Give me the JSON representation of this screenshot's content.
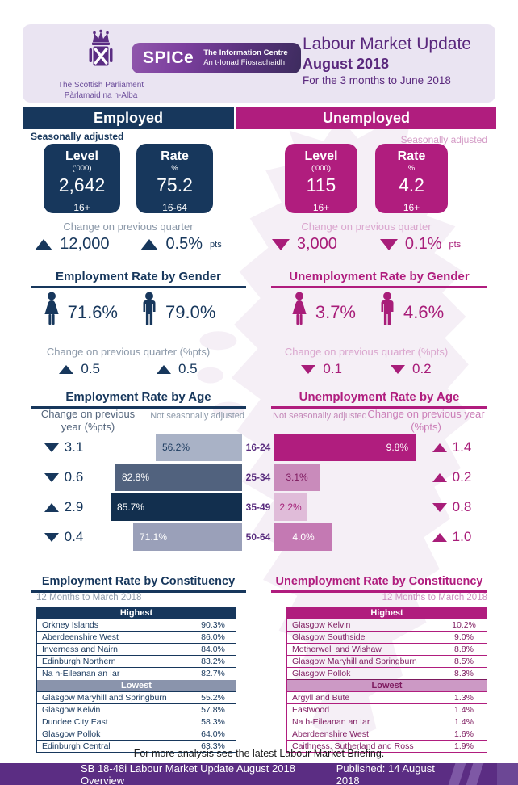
{
  "header": {
    "parliament_logo": {
      "line1": "The Scottish Parliament",
      "line2": "Pàrlamaid na h-Alba"
    },
    "spice_badge": {
      "name": "SPICe",
      "line1": "The Information Centre",
      "line2": "An t-Ionad Fiosrachaidh"
    },
    "title": "Labour Market Update",
    "month": "August 2018",
    "period": "For the 3 months to June 2018"
  },
  "summary": {
    "employed": {
      "header": "Employed",
      "note": "Seasonally adjusted",
      "level": {
        "label": "Level",
        "unit": "('000)",
        "value": "2,642",
        "age": "16+"
      },
      "rate": {
        "label": "Rate",
        "unit": "%",
        "value": "75.2",
        "age": "16-64"
      },
      "change_label": "Change on previous quarter",
      "changes": [
        {
          "direction": "up",
          "value": "12,000"
        },
        {
          "direction": "up",
          "value": "0.5%",
          "sub": "pts"
        }
      ]
    },
    "unemployed": {
      "header": "Unemployed",
      "note": "Seasonally adjusted",
      "level": {
        "label": "Level",
        "unit": "('000)",
        "value": "115",
        "age": "16+"
      },
      "rate": {
        "label": "Rate",
        "unit": "%",
        "value": "4.2",
        "age": "16+"
      },
      "change_label": "Change on previous quarter",
      "changes": [
        {
          "direction": "down",
          "value": "3,000"
        },
        {
          "direction": "down",
          "value": "0.1%",
          "sub": "pts"
        }
      ]
    }
  },
  "gender": {
    "employment": {
      "title": "Employment Rate by Gender",
      "female_rate": "71.6%",
      "male_rate": "79.0%",
      "change_label": "Change on previous quarter (%pts)",
      "female_change": {
        "direction": "up",
        "value": "0.5"
      },
      "male_change": {
        "direction": "up",
        "value": "0.5"
      }
    },
    "unemployment": {
      "title": "Unemployment Rate by Gender",
      "female_rate": "3.7%",
      "male_rate": "4.6%",
      "change_label": "Change on previous quarter (%pts)",
      "female_change": {
        "direction": "down",
        "value": "0.1"
      },
      "male_change": {
        "direction": "down",
        "value": "0.2"
      }
    }
  },
  "age": {
    "groups": [
      "16-24",
      "25-34",
      "35-49",
      "50-64"
    ],
    "employment": {
      "title": "Employment Rate by Age",
      "note": "Not seasonally adjusted",
      "change_label": "Change on previous year (%pts)",
      "rows": [
        {
          "value": 56.2,
          "label": "56.2%",
          "bar_color": "#A9B2C6",
          "label_color": "#1B3A5F",
          "change_direction": "down",
          "change": "3.1"
        },
        {
          "value": 82.8,
          "label": "82.8%",
          "bar_color": "#51627E",
          "label_color": "#FFFFFF",
          "change_direction": "down",
          "change": "0.6"
        },
        {
          "value": 85.7,
          "label": "85.7%",
          "bar_color": "#122F4E",
          "label_color": "#FFFFFF",
          "change_direction": "up",
          "change": "2.9"
        },
        {
          "value": 71.1,
          "label": "71.1%",
          "bar_color": "#9AA0B9",
          "label_color": "#FFFFFF",
          "change_direction": "down",
          "change": "0.4"
        }
      ]
    },
    "unemployment": {
      "title": "Unemployment Rate by Age",
      "note": "Not seasonally adjusted",
      "change_label": "Change on previous year (%pts)",
      "rows": [
        {
          "value": 9.8,
          "label": "9.8%",
          "bar_color": "#B01D7E",
          "label_color": "#FFFFFF",
          "change_direction": "up",
          "change": "1.4"
        },
        {
          "value": 3.1,
          "label": "3.1%",
          "bar_color": "#C98BBB",
          "label_color": "#7E1A5F",
          "change_direction": "up",
          "change": "0.2"
        },
        {
          "value": 2.2,
          "label": "2.2%",
          "bar_color": "#E0BCD9",
          "label_color": "#A52279",
          "change_direction": "down",
          "change": "0.8"
        },
        {
          "value": 4.0,
          "label": "4.0%",
          "bar_color": "#C479B3",
          "label_color": "#FFFFFF",
          "change_direction": "up",
          "change": "1.0"
        }
      ]
    }
  },
  "constituency": {
    "employment": {
      "title": "Employment Rate by Constituency",
      "period": "12 Months to March 2018",
      "highest_label": "Highest",
      "lowest_label": "Lowest",
      "highest": [
        {
          "name": "Orkney Islands",
          "value": "90.3%"
        },
        {
          "name": "Aberdeenshire West",
          "value": "86.0%"
        },
        {
          "name": "Inverness and Nairn",
          "value": "84.0%"
        },
        {
          "name": "Edinburgh Northern",
          "value": "83.2%"
        },
        {
          "name": "Na h-Eileanan an Iar",
          "value": "82.7%"
        }
      ],
      "lowest": [
        {
          "name": "Glasgow Maryhill and Springburn",
          "value": "55.2%"
        },
        {
          "name": "Glasgow Kelvin",
          "value": "57.8%"
        },
        {
          "name": "Dundee City East",
          "value": "58.3%"
        },
        {
          "name": "Glasgow Pollok",
          "value": "64.0%"
        },
        {
          "name": "Edinburgh Central",
          "value": "63.3%"
        }
      ]
    },
    "unemployment": {
      "title": "Unemployment Rate by Constituency",
      "period": "12 Months to March 2018",
      "highest_label": "Highest",
      "lowest_label": "Lowest",
      "highest": [
        {
          "name": "Glasgow Kelvin",
          "value": "10.2%"
        },
        {
          "name": "Glasgow Southside",
          "value": "9.0%"
        },
        {
          "name": "Motherwell and Wishaw",
          "value": "8.8%"
        },
        {
          "name": "Glasgow Maryhill and Springburn",
          "value": "8.5%"
        },
        {
          "name": "Glasgow Pollok",
          "value": "8.3%"
        }
      ],
      "lowest": [
        {
          "name": "Argyll and Bute",
          "value": "1.3%"
        },
        {
          "name": "Eastwood",
          "value": "1.4%"
        },
        {
          "name": "Na h-Eileanan an Iar",
          "value": "1.4%"
        },
        {
          "name": "Aberdeenshire West",
          "value": "1.6%"
        },
        {
          "name": "Caithness, Sutherland and Ross",
          "value": "1.9%"
        }
      ]
    }
  },
  "footer": {
    "note": "For more analysis see the latest Labour Market Briefing.",
    "ref": "SB 18-48i Labour Market Update August 2018 Overview",
    "published": "Published: 14 August 2018"
  },
  "colors": {
    "navy": "#17375C",
    "magenta": "#B01D7E",
    "purple": "#5B2D83",
    "slate": "#8A94AC",
    "pink_header": "#CC99C5",
    "lavender_card": "#EAE4F2"
  },
  "chart_data": [
    {
      "type": "bar",
      "orientation": "horizontal",
      "title": "Employment Rate by Age",
      "note": "Not seasonally adjusted",
      "categories": [
        "16-24",
        "25-34",
        "35-49",
        "50-64"
      ],
      "values": [
        56.2,
        82.8,
        85.7,
        71.1
      ],
      "change_on_previous_year_pts": [
        -3.1,
        -0.6,
        2.9,
        -0.4
      ]
    },
    {
      "type": "bar",
      "orientation": "horizontal",
      "title": "Unemployment Rate by Age",
      "note": "Not seasonally adjusted",
      "categories": [
        "16-24",
        "25-34",
        "35-49",
        "50-64"
      ],
      "values": [
        9.8,
        3.1,
        2.2,
        4.0
      ],
      "change_on_previous_year_pts": [
        1.4,
        0.2,
        -0.8,
        1.0
      ]
    }
  ]
}
